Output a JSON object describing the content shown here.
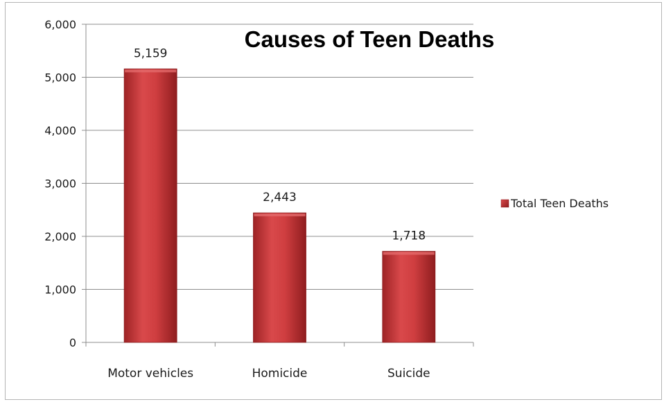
{
  "chart_data": {
    "type": "bar",
    "title": "Causes of Teen Deaths",
    "xlabel": "",
    "ylabel": "",
    "categories": [
      "Motor vehicles",
      "Homicide",
      "Suicide"
    ],
    "series": [
      {
        "name": "Total Teen Deaths",
        "values": [
          5159,
          2443,
          1718
        ],
        "data_labels": [
          "5,159",
          "2,443",
          "1,718"
        ]
      }
    ],
    "ylim": [
      0,
      6000
    ],
    "y_ticks": [
      0,
      1000,
      2000,
      3000,
      4000,
      5000,
      6000
    ],
    "y_tick_labels": [
      "0",
      "1,000",
      "2,000",
      "3,000",
      "4,000",
      "5,000",
      "6,000"
    ],
    "grid": true,
    "legend_position": "right",
    "colors": {
      "bar_fill": "#c0393b",
      "bar_edge": "#8b1a1c",
      "gridline": "#8c8c8c",
      "axis": "#8c8c8c"
    }
  }
}
